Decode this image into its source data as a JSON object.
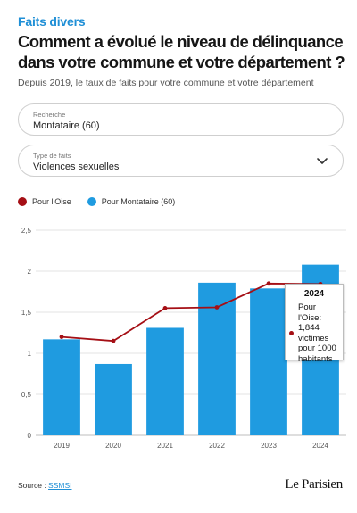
{
  "header": {
    "kicker": "Faits divers",
    "title": "Comment a évolué le niveau de délinquance dans votre commune et votre département ?",
    "subtitle": "Depuis 2019, le taux de faits pour votre commune et votre département"
  },
  "search": {
    "label": "Recherche",
    "value": "Montataire (60)"
  },
  "type_select": {
    "label": "Type de faits",
    "value": "Violences sexuelles",
    "icon": "chevron-down-icon"
  },
  "legend": {
    "line_label": "Pour l'Oise",
    "bar_label": "Pour Montataire (60)"
  },
  "colors": {
    "bar": "#1f9be0",
    "line": "#a50f15",
    "grid": "#e3e3e3",
    "accent": "#1f8fd6"
  },
  "chart_data": {
    "type": "bar",
    "categories": [
      "2019",
      "2020",
      "2021",
      "2022",
      "2023",
      "2024"
    ],
    "series": [
      {
        "name": "Pour Montataire (60)",
        "type": "bar",
        "values": [
          1.17,
          0.87,
          1.31,
          1.86,
          1.79,
          2.08
        ]
      },
      {
        "name": "Pour l'Oise",
        "type": "line",
        "values": [
          1.2,
          1.15,
          1.55,
          1.56,
          1.85,
          1.844
        ]
      }
    ],
    "ylim": [
      0,
      2.5
    ],
    "yticks": [
      "0",
      "0,5",
      "1",
      "1,5",
      "2",
      "2,5"
    ],
    "ytick_values": [
      0,
      0.5,
      1,
      1.5,
      2,
      2.5
    ],
    "grid": true,
    "legend_position": "top-left"
  },
  "tooltip": {
    "year": "2024",
    "text": "Pour l'Oise: 1,844 victimes pour 1000 habitants"
  },
  "footer": {
    "source_label": "Source :",
    "source_link": "SSMSI",
    "logo": "Le Parisien"
  }
}
